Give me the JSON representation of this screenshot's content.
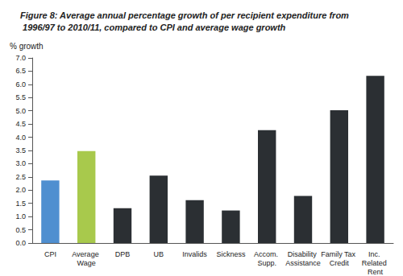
{
  "chart_data": {
    "type": "bar",
    "title": "Figure 8: Average annual percentage growth of per recipient expenditure from 1996/97 to 2010/11, compared to CPI and average wage growth",
    "y_label": "% growth",
    "categories": [
      "CPI",
      "Average Wage",
      "DPB",
      "UB",
      "Invalids",
      "Sickness",
      "Accom. Supp.",
      "Disability Assistance",
      "Family Tax Credit",
      "Inc. Related Rent"
    ],
    "values": [
      2.37,
      3.48,
      1.32,
      2.55,
      1.62,
      1.23,
      4.27,
      1.78,
      5.02,
      6.32
    ],
    "colors": [
      "#4f8fd0",
      "#a8c94c",
      "#2b2f33",
      "#2b2f33",
      "#2b2f33",
      "#2b2f33",
      "#2b2f33",
      "#2b2f33",
      "#2b2f33",
      "#2b2f33"
    ],
    "ylim": [
      0,
      7
    ],
    "yticks": [
      {
        "value": 0,
        "label": "0.0"
      },
      0.5,
      {
        "value": 1,
        "label": "1.0"
      },
      1.5,
      {
        "value": 2,
        "label": "2.0"
      },
      2.5,
      {
        "value": 3,
        "label": "3.0"
      },
      3.5,
      {
        "value": 4,
        "label": "4.0"
      },
      4.5,
      {
        "value": 5,
        "label": "5.0"
      },
      5.5,
      {
        "value": 6,
        "label": "6.0"
      },
      6.5,
      {
        "value": 7,
        "label": "7.0"
      }
    ],
    "grid": false
  }
}
